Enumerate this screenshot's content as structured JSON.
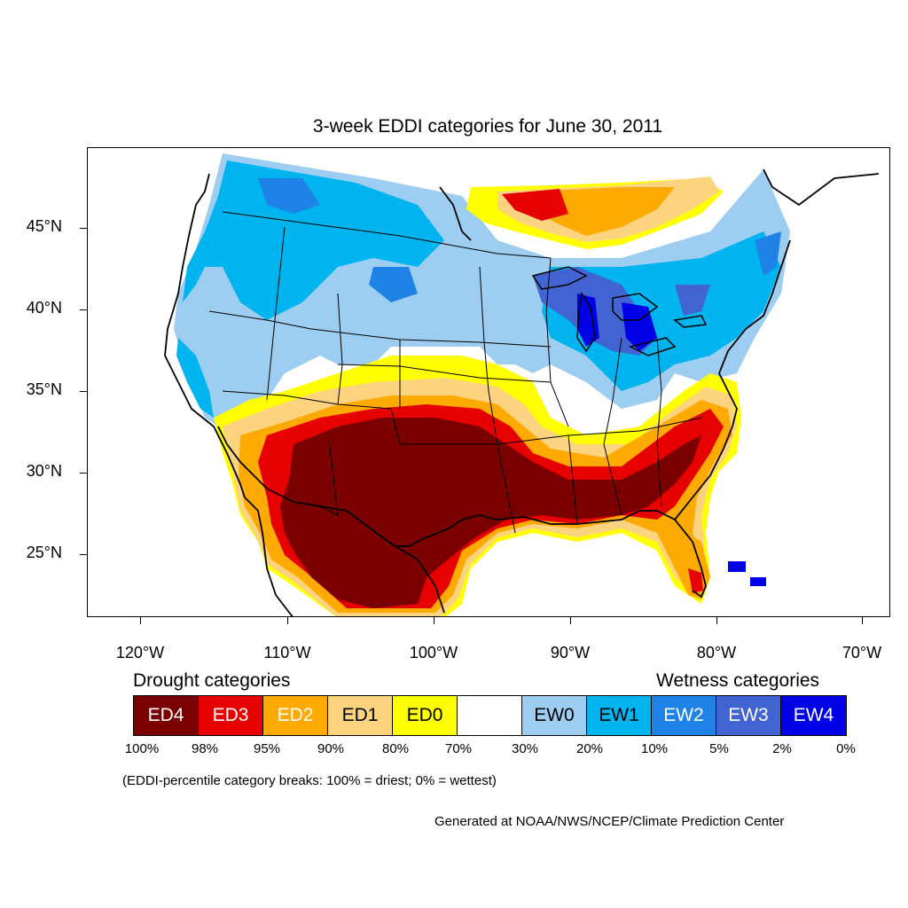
{
  "title": "3-week EDDI categories for June 30, 2011",
  "axes": {
    "lon_labels": [
      "120°W",
      "110°W",
      "100°W",
      "90°W",
      "80°W",
      "70°W"
    ],
    "lat_labels": [
      "45°N",
      "40°N",
      "35°N",
      "30°N",
      "25°N"
    ]
  },
  "legend": {
    "drought_title": "Drought categories",
    "wetness_title": "Wetness categories",
    "categories": [
      {
        "label": "ED4",
        "color": "#7a0000",
        "text_color": "#ffffff"
      },
      {
        "label": "ED3",
        "color": "#e60000",
        "text_color": "#ffffff"
      },
      {
        "label": "ED2",
        "color": "#ffaa00",
        "text_color": "#ffffff"
      },
      {
        "label": "ED1",
        "color": "#fcd37f",
        "text_color": "#000000"
      },
      {
        "label": "ED0",
        "color": "#ffff00",
        "text_color": "#000000"
      },
      {
        "label": "",
        "color": "#ffffff",
        "text_color": "#000000"
      },
      {
        "label": "EW0",
        "color": "#9dcdf0",
        "text_color": "#000000"
      },
      {
        "label": "EW1",
        "color": "#00b4f0",
        "text_color": "#000000"
      },
      {
        "label": "EW2",
        "color": "#1e82e6",
        "text_color": "#ffffff"
      },
      {
        "label": "EW3",
        "color": "#4164d2",
        "text_color": "#ffffff"
      },
      {
        "label": "EW4",
        "color": "#0000e6",
        "text_color": "#ffffff"
      }
    ],
    "breaks": [
      "100%",
      "98%",
      "95%",
      "90%",
      "80%",
      "70%",
      "30%",
      "20%",
      "10%",
      "5%",
      "2%",
      "0%"
    ]
  },
  "note": "(EDDI-percentile category breaks: 100% = driest; 0% = wettest)",
  "credit": "Generated at NOAA/NWS/NCEP/Climate Prediction Center"
}
